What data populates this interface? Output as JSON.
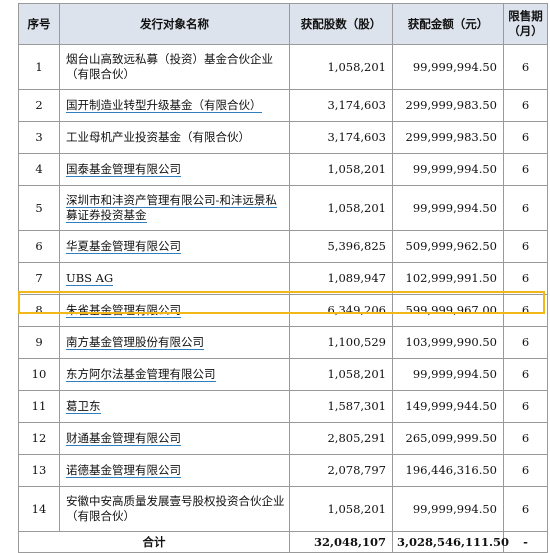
{
  "headers": [
    "序号",
    "发行对象名称",
    "获配股数（股）",
    "获配金额（元）",
    "限售期（月）"
  ],
  "rows": [
    {
      "no": "1",
      "name": "烟台山高致远私募（投资）基金合伙企业（有限合伙）",
      "shares": "1,058,201",
      "amount": "99,999,994.50",
      "lock": "6"
    },
    {
      "no": "2",
      "name": "国开制造业转型升级基金（有限合伙）",
      "shares": "3,174,603",
      "amount": "299,999,983.50",
      "lock": "6"
    },
    {
      "no": "3",
      "name": "工业母机产业投资基金（有限合伙）",
      "shares": "3,174,603",
      "amount": "299,999,983.50",
      "lock": "6"
    },
    {
      "no": "4",
      "name": "国泰基金管理有限公司",
      "shares": "1,058,201",
      "amount": "99,999,994.50",
      "lock": "6"
    },
    {
      "no": "5",
      "name": "深圳市和沣资产管理有限公司-和沣远景私募证券投资基金",
      "shares": "1,058,201",
      "amount": "99,999,994.50",
      "lock": "6"
    },
    {
      "no": "6",
      "name": "华夏基金管理有限公司",
      "shares": "5,396,825",
      "amount": "509,999,962.50",
      "lock": "6"
    },
    {
      "no": "7",
      "name": "UBS AG",
      "shares": "1,089,947",
      "amount": "102,999,991.50",
      "lock": "6"
    },
    {
      "no": "8",
      "name": "朱雀基金管理有限公司",
      "shares": "6,349,206",
      "amount": "599,999,967.00",
      "lock": "6"
    },
    {
      "no": "9",
      "name": "南方基金管理股份有限公司",
      "shares": "1,100,529",
      "amount": "103,999,990.50",
      "lock": "6"
    },
    {
      "no": "10",
      "name": "东方阿尔法基金管理有限公司",
      "shares": "1,058,201",
      "amount": "99,999,994.50",
      "lock": "6"
    },
    {
      "no": "11",
      "name": "葛卫东",
      "shares": "1,587,301",
      "amount": "149,999,944.50",
      "lock": "6"
    },
    {
      "no": "12",
      "name": "财通基金管理有限公司",
      "shares": "2,805,291",
      "amount": "265,099,999.50",
      "lock": "6"
    },
    {
      "no": "13",
      "name": "诺德基金管理有限公司",
      "shares": "2,078,797",
      "amount": "196,446,316.50",
      "lock": "6"
    },
    {
      "no": "14",
      "name": "安徽中安高质量发展壹号股权投资合伙企业（有限合伙）",
      "shares": "1,058,201",
      "amount": "99,999,994.50",
      "lock": "6"
    }
  ],
  "total": {
    "label": "合计",
    "shares": "32,048,107",
    "amount": "3,028,546,111.50",
    "lock": "-"
  }
}
